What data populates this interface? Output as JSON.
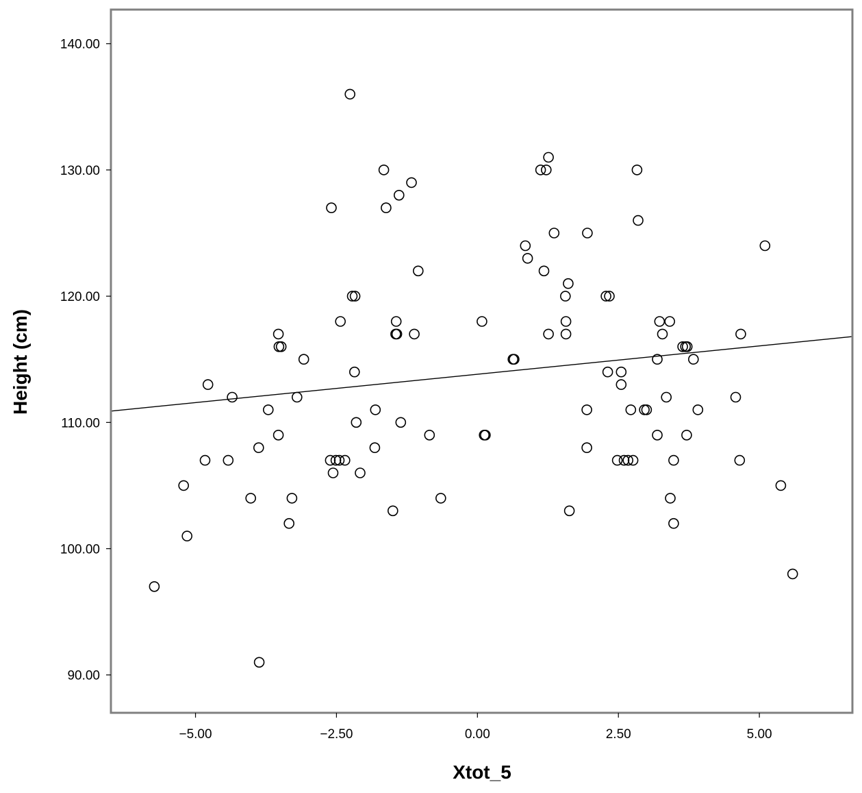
{
  "chart_data": {
    "type": "scatter",
    "title": "",
    "xlabel": "Xtot_5",
    "ylabel": "Height (cm)",
    "xlim": [
      -6.5,
      6.65
    ],
    "ylim": [
      87.0,
      142.7
    ],
    "x_ticks": [
      -5,
      -2.5,
      0,
      2.5,
      5
    ],
    "x_tick_labels": [
      "-5.00",
      "-2.50",
      "0.00",
      "2.50",
      "5.00"
    ],
    "y_ticks": [
      90,
      100,
      110,
      120,
      130,
      140
    ],
    "y_tick_labels": [
      "90.00",
      "100.00",
      "110.00",
      "120.00",
      "130.00",
      "140.00"
    ],
    "grid": false,
    "fit_line": {
      "x": [
        -6.5,
        6.65
      ],
      "y": [
        110.9,
        116.8
      ]
    },
    "points": [
      [
        -5.73,
        97
      ],
      [
        -5.21,
        105
      ],
      [
        -5.15,
        101
      ],
      [
        -4.83,
        107
      ],
      [
        -4.78,
        113
      ],
      [
        -4.42,
        107
      ],
      [
        -4.35,
        112
      ],
      [
        -4.02,
        104
      ],
      [
        -3.87,
        91
      ],
      [
        -3.88,
        108
      ],
      [
        -3.71,
        111
      ],
      [
        -3.53,
        109
      ],
      [
        -3.53,
        117
      ],
      [
        -3.52,
        116
      ],
      [
        -3.48,
        116
      ],
      [
        -3.34,
        102
      ],
      [
        -3.29,
        104
      ],
      [
        -3.2,
        112
      ],
      [
        -3.08,
        115
      ],
      [
        -2.61,
        107
      ],
      [
        -2.59,
        127
      ],
      [
        -2.56,
        106
      ],
      [
        -2.51,
        107
      ],
      [
        -2.45,
        107
      ],
      [
        -2.43,
        118
      ],
      [
        -2.35,
        107
      ],
      [
        -2.26,
        136
      ],
      [
        -2.22,
        120
      ],
      [
        -2.18,
        114
      ],
      [
        -2.17,
        120
      ],
      [
        -2.15,
        110
      ],
      [
        -2.08,
        106
      ],
      [
        -1.81,
        111
      ],
      [
        -1.82,
        108
      ],
      [
        -1.66,
        130
      ],
      [
        -1.62,
        127
      ],
      [
        -1.5,
        103
      ],
      [
        -1.44,
        118
      ],
      [
        -1.45,
        117
      ],
      [
        -1.43,
        117
      ],
      [
        -1.39,
        128
      ],
      [
        -1.36,
        110
      ],
      [
        -1.17,
        129
      ],
      [
        -1.12,
        117
      ],
      [
        -1.05,
        122
      ],
      [
        -0.85,
        109
      ],
      [
        -0.65,
        104
      ],
      [
        0.08,
        118
      ],
      [
        0.12,
        109
      ],
      [
        0.14,
        109
      ],
      [
        0.63,
        115
      ],
      [
        0.65,
        115
      ],
      [
        0.85,
        124
      ],
      [
        0.89,
        123
      ],
      [
        1.12,
        130
      ],
      [
        1.18,
        122
      ],
      [
        1.22,
        130
      ],
      [
        1.26,
        131
      ],
      [
        1.26,
        117
      ],
      [
        1.36,
        125
      ],
      [
        1.56,
        120
      ],
      [
        1.57,
        118
      ],
      [
        1.57,
        117
      ],
      [
        1.61,
        121
      ],
      [
        1.63,
        103
      ],
      [
        1.94,
        108
      ],
      [
        1.94,
        111
      ],
      [
        1.95,
        125
      ],
      [
        2.28,
        120
      ],
      [
        2.31,
        114
      ],
      [
        2.34,
        120
      ],
      [
        2.48,
        107
      ],
      [
        2.55,
        113
      ],
      [
        2.55,
        114
      ],
      [
        2.6,
        107
      ],
      [
        2.67,
        107
      ],
      [
        2.72,
        111
      ],
      [
        2.76,
        107
      ],
      [
        2.83,
        130
      ],
      [
        2.85,
        126
      ],
      [
        2.96,
        111
      ],
      [
        3.0,
        111
      ],
      [
        3.19,
        109
      ],
      [
        3.19,
        115
      ],
      [
        3.23,
        118
      ],
      [
        3.28,
        117
      ],
      [
        3.35,
        112
      ],
      [
        3.41,
        118
      ],
      [
        3.42,
        104
      ],
      [
        3.48,
        107
      ],
      [
        3.48,
        102
      ],
      [
        3.64,
        116
      ],
      [
        3.69,
        116
      ],
      [
        3.71,
        109
      ],
      [
        3.72,
        116
      ],
      [
        3.83,
        115
      ],
      [
        3.91,
        111
      ],
      [
        4.58,
        112
      ],
      [
        4.65,
        107
      ],
      [
        4.67,
        117
      ],
      [
        5.1,
        124
      ],
      [
        5.38,
        105
      ],
      [
        5.59,
        98
      ]
    ]
  }
}
